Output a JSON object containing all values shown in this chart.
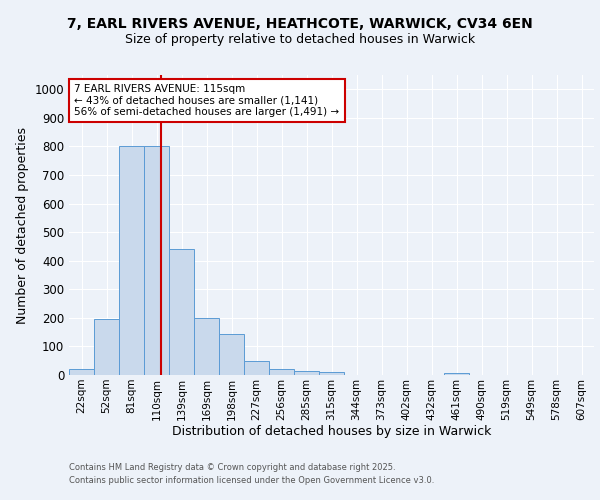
{
  "title1": "7, EARL RIVERS AVENUE, HEATHCOTE, WARWICK, CV34 6EN",
  "title2": "Size of property relative to detached houses in Warwick",
  "xlabel": "Distribution of detached houses by size in Warwick",
  "ylabel": "Number of detached properties",
  "categories": [
    "22sqm",
    "52sqm",
    "81sqm",
    "110sqm",
    "139sqm",
    "169sqm",
    "198sqm",
    "227sqm",
    "256sqm",
    "285sqm",
    "315sqm",
    "344sqm",
    "373sqm",
    "402sqm",
    "432sqm",
    "461sqm",
    "490sqm",
    "519sqm",
    "549sqm",
    "578sqm",
    "607sqm"
  ],
  "values": [
    20,
    195,
    800,
    800,
    440,
    200,
    145,
    50,
    20,
    15,
    10,
    0,
    0,
    0,
    0,
    8,
    0,
    0,
    0,
    0,
    0
  ],
  "bar_color": "#c9d9ec",
  "bar_edge_color": "#5b9bd5",
  "red_line_x": 3.18,
  "annotation_title": "7 EARL RIVERS AVENUE: 115sqm",
  "annotation_line1": "← 43% of detached houses are smaller (1,141)",
  "annotation_line2": "56% of semi-detached houses are larger (1,491) →",
  "annotation_box_color": "#ffffff",
  "annotation_box_edge": "#cc0000",
  "red_line_color": "#cc0000",
  "ylim": [
    0,
    1050
  ],
  "yticks": [
    0,
    100,
    200,
    300,
    400,
    500,
    600,
    700,
    800,
    900,
    1000
  ],
  "footer1": "Contains HM Land Registry data © Crown copyright and database right 2025.",
  "footer2": "Contains public sector information licensed under the Open Government Licence v3.0.",
  "background_color": "#edf2f9",
  "grid_color": "#ffffff",
  "title_fontsize": 10,
  "subtitle_fontsize": 9,
  "axis_label_fontsize": 9,
  "tick_fontsize": 7.5
}
